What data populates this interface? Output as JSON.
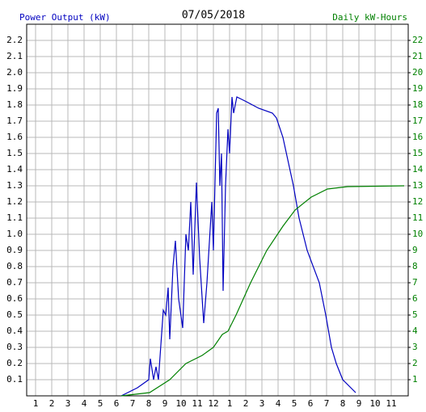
{
  "chart_data": {
    "type": "line",
    "title": "07/05/2018",
    "y_label": "Power Output (kW)",
    "y2_label": "Daily kW-Hours",
    "xlim": [
      0.45,
      24.05
    ],
    "xticks": [
      1,
      2,
      3,
      4,
      5,
      6,
      7,
      8,
      9,
      10,
      11,
      12,
      {
        "value": 13,
        "label": "1"
      },
      {
        "value": 14,
        "label": "2"
      },
      {
        "value": 15,
        "label": "3"
      },
      {
        "value": 16,
        "label": "4"
      },
      {
        "value": 17,
        "label": "5"
      },
      {
        "value": 18,
        "label": "6"
      },
      {
        "value": 19,
        "label": "7"
      },
      {
        "value": 20,
        "label": "8"
      },
      {
        "value": 21,
        "label": "9"
      },
      {
        "value": 22,
        "label": "10"
      },
      {
        "value": 23,
        "label": "11"
      }
    ],
    "ylim": [
      0,
      2.3
    ],
    "yticks": [
      0.1,
      0.2,
      0.3,
      0.4,
      0.5,
      0.6,
      0.7,
      0.8,
      0.9,
      {
        "value": 1.0,
        "label": "1.0"
      },
      1.1,
      1.2,
      1.3,
      1.4,
      1.5,
      1.6,
      1.7,
      1.8,
      1.9,
      {
        "value": 2.0,
        "label": "2.0"
      },
      2.1,
      2.2
    ],
    "y2lim": [
      0,
      23
    ],
    "y2ticks": [
      1,
      2,
      3,
      4,
      5,
      6,
      7,
      8,
      9,
      10,
      11,
      12,
      13,
      14,
      15,
      16,
      17,
      18,
      19,
      20,
      21,
      22
    ],
    "grid": true,
    "series": [
      {
        "name": "Power Output (kW)",
        "color": "#0000c0",
        "x": [
          6.3,
          7.3,
          8.0,
          8.1,
          8.3,
          8.45,
          8.6,
          8.9,
          9.05,
          9.2,
          9.3,
          9.5,
          9.65,
          9.85,
          10.1,
          10.3,
          10.45,
          10.6,
          10.75,
          10.95,
          11.15,
          11.4,
          11.6,
          11.9,
          12.0,
          12.2,
          12.3,
          12.4,
          12.5,
          12.6,
          12.75,
          12.9,
          13.0,
          13.15,
          13.25,
          13.45,
          14.05,
          14.8,
          15.65,
          15.9,
          16.3,
          16.95,
          17.3,
          17.8,
          18.55,
          18.95,
          19.3,
          19.6,
          20.0,
          20.8
        ],
        "values": [
          0.0,
          0.05,
          0.1,
          0.23,
          0.1,
          0.18,
          0.1,
          0.53,
          0.5,
          0.67,
          0.35,
          0.8,
          0.96,
          0.6,
          0.42,
          1.0,
          0.9,
          1.2,
          0.75,
          1.32,
          0.85,
          0.45,
          0.7,
          1.2,
          0.9,
          1.75,
          1.78,
          1.3,
          1.5,
          0.65,
          1.3,
          1.65,
          1.5,
          1.85,
          1.75,
          1.85,
          1.82,
          1.78,
          1.75,
          1.72,
          1.6,
          1.3,
          1.1,
          0.9,
          0.7,
          0.5,
          0.3,
          0.2,
          0.1,
          0.02
        ]
      },
      {
        "name": "Daily kW-Hours",
        "color": "#008000",
        "axis": "y2",
        "x": [
          6.3,
          8.05,
          9.3,
          10.3,
          11.3,
          12.0,
          12.55,
          12.9,
          13.4,
          14.3,
          15.3,
          16.3,
          17.05,
          18.05,
          19.05,
          20.3,
          23.8
        ],
        "values": [
          0.0,
          0.2,
          1.0,
          2.0,
          2.5,
          3.0,
          3.8,
          4.0,
          5.0,
          7.0,
          9.0,
          10.5,
          11.5,
          12.3,
          12.8,
          12.95,
          13.0
        ]
      }
    ]
  }
}
